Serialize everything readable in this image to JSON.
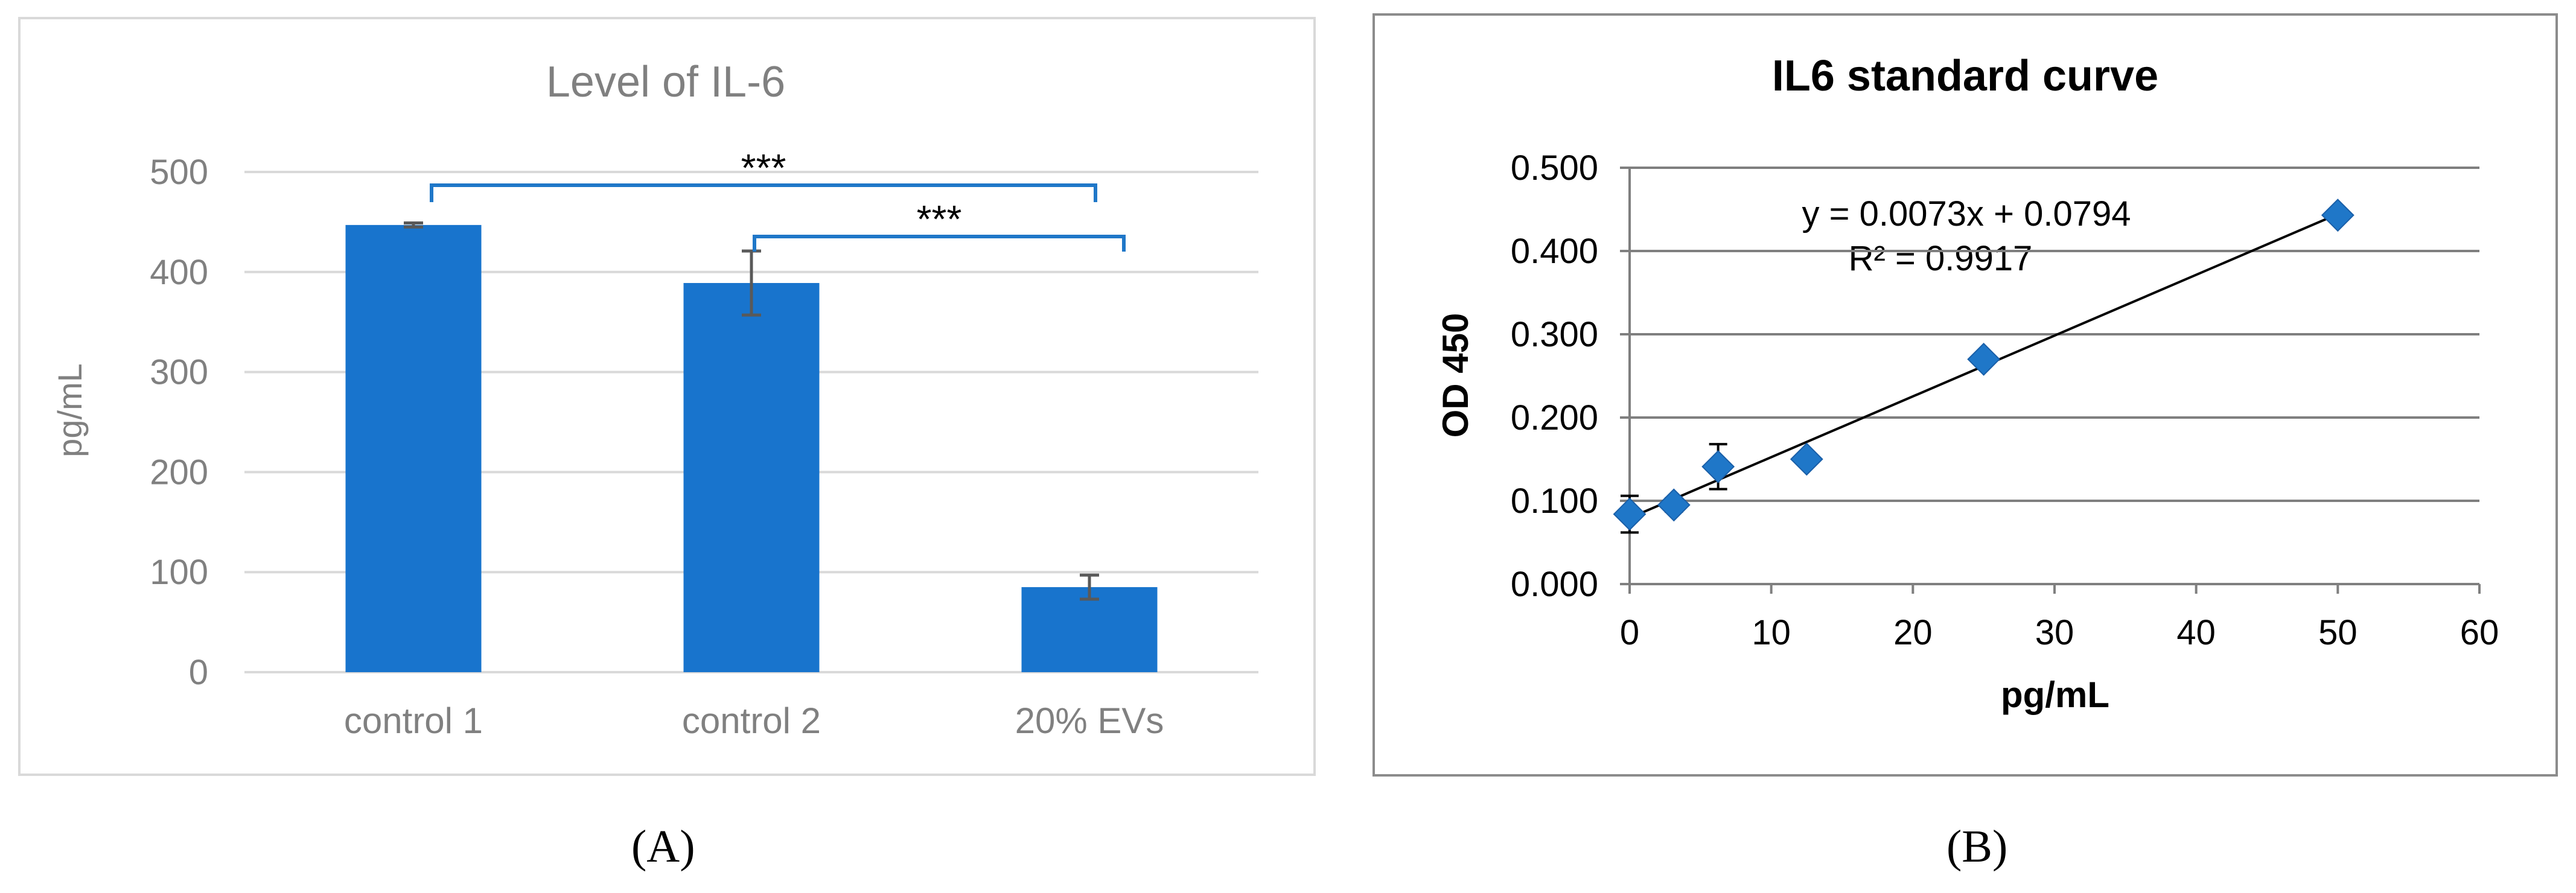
{
  "chart_data": [
    {
      "type": "bar",
      "title": "Level of IL-6",
      "ylabel": "pg/mL",
      "xlabel": "",
      "categories": [
        "control 1",
        "control 2",
        "20% EVs"
      ],
      "values": [
        447,
        389,
        85
      ],
      "errors": [
        2,
        32,
        12
      ],
      "ylim": [
        0,
        500
      ],
      "yticks": [
        0,
        100,
        200,
        300,
        400,
        500
      ],
      "grid": true,
      "significance": [
        {
          "from": "control 1",
          "to": "20% EVs",
          "label": "***"
        },
        {
          "from": "control 2",
          "to": "20% EVs",
          "label": "***"
        }
      ],
      "colors": {
        "bar": "#1874cd",
        "error": "#595959",
        "bracket": "#1f77c8",
        "grid": "#d9d9d9",
        "text": "#808080"
      }
    },
    {
      "type": "scatter",
      "title": "IL6 standard curve",
      "xlabel": "pg/mL",
      "ylabel": "OD 450",
      "xlim": [
        0,
        60
      ],
      "ylim": [
        0,
        0.5
      ],
      "xticks": [
        "0",
        "10",
        "20",
        "30",
        "40",
        "50",
        "60"
      ],
      "yticks": [
        "0.000",
        "0.100",
        "0.200",
        "0.300",
        "0.400",
        "0.500"
      ],
      "points": [
        {
          "x": 0,
          "y": 0.084,
          "err": 0.022
        },
        {
          "x": 3.125,
          "y": 0.095,
          "err": 0.008
        },
        {
          "x": 6.25,
          "y": 0.141,
          "err": 0.027
        },
        {
          "x": 12.5,
          "y": 0.15,
          "err": 0.0
        },
        {
          "x": 25,
          "y": 0.27,
          "err": 0.0
        },
        {
          "x": 50,
          "y": 0.443,
          "err": 0.0
        }
      ],
      "trendline": {
        "slope": 0.0073,
        "intercept": 0.0794
      },
      "equation": "y = 0.0073x + 0.0794",
      "r2": "R² = 0.9917",
      "grid": true,
      "colors": {
        "marker": "#1f77c8",
        "line": "#000000",
        "grid": "#7f7f7f"
      }
    }
  ],
  "panel_labels": [
    "(A)",
    "(B)"
  ]
}
